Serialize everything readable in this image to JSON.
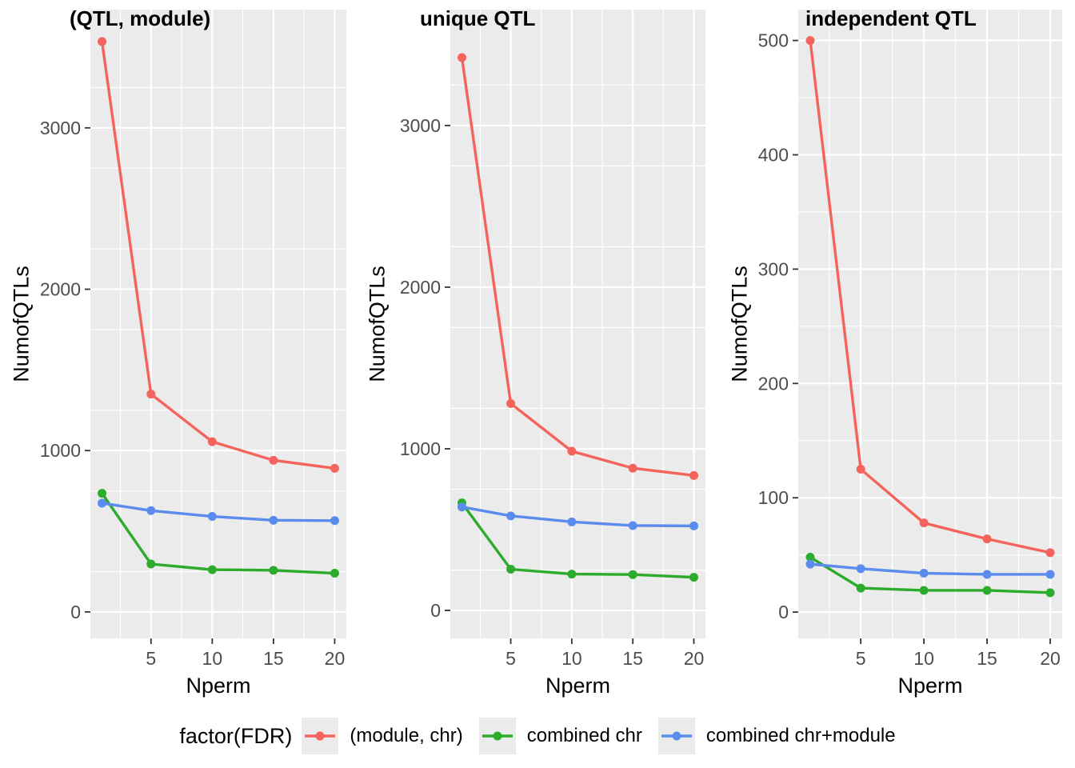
{
  "figure": {
    "background": "#FFFFFF",
    "panel_bg": "#EBEBEB",
    "grid_color": "#FFFFFF",
    "tick_mark_color": "#333333",
    "tick_label_color": "#4D4D4D",
    "title_color": "#000000"
  },
  "legend": {
    "title": "factor(FDR)",
    "position": "bottom",
    "entries": [
      {
        "label": "(module, chr)",
        "color": "#F4645C"
      },
      {
        "label": "combined chr",
        "color": "#2CAB2C"
      },
      {
        "label": "combined chr+module",
        "color": "#5C8BEE"
      }
    ]
  },
  "chart_data": [
    {
      "type": "line",
      "title": "(QTL, module)",
      "xlabel": "Nperm",
      "ylabel": "NumofQTLs",
      "x": [
        1,
        5,
        10,
        15,
        20
      ],
      "xticks": [
        5,
        10,
        15,
        20
      ],
      "xminor": [
        2.5,
        7.5,
        12.5,
        17.5
      ],
      "xlim": [
        0.05,
        20.95
      ],
      "yticks": [
        0,
        1000,
        2000,
        3000
      ],
      "yminor_step": 500,
      "ylim": [
        -164,
        3733
      ],
      "grid": true,
      "markers": true,
      "series": [
        {
          "name": "(module, chr)",
          "color": "#F4645C",
          "values": [
            3535,
            1350,
            1055,
            940,
            890
          ]
        },
        {
          "name": "combined chr",
          "color": "#2CAB2C",
          "values": [
            735,
            297,
            262,
            258,
            240
          ]
        },
        {
          "name": "combined chr+module",
          "color": "#5C8BEE",
          "values": [
            674,
            628,
            592,
            568,
            566
          ]
        }
      ]
    },
    {
      "type": "line",
      "title": "unique QTL",
      "xlabel": "Nperm",
      "ylabel": "NumofQTLs",
      "x": [
        1,
        5,
        10,
        15,
        20
      ],
      "xticks": [
        5,
        10,
        15,
        20
      ],
      "xminor": [
        2.5,
        7.5,
        12.5,
        17.5
      ],
      "xlim": [
        0.05,
        20.95
      ],
      "yticks": [
        0,
        1000,
        2000,
        3000
      ],
      "yminor_step": 500,
      "ylim": [
        -173,
        3717
      ],
      "grid": true,
      "markers": true,
      "series": [
        {
          "name": "(module, chr)",
          "color": "#F4645C",
          "values": [
            3420,
            1280,
            985,
            880,
            835
          ]
        },
        {
          "name": "combined chr",
          "color": "#2CAB2C",
          "values": [
            665,
            255,
            225,
            222,
            205
          ]
        },
        {
          "name": "combined chr+module",
          "color": "#5C8BEE",
          "values": [
            640,
            585,
            548,
            525,
            523
          ]
        }
      ]
    },
    {
      "type": "line",
      "title": "independent QTL",
      "xlabel": "Nperm",
      "ylabel": "NumofQTLs",
      "x": [
        1,
        5,
        10,
        15,
        20
      ],
      "xticks": [
        5,
        10,
        15,
        20
      ],
      "xminor": [
        2.5,
        7.5,
        12.5,
        17.5
      ],
      "xlim": [
        0.05,
        20.95
      ],
      "yticks": [
        0,
        100,
        200,
        300,
        400,
        500
      ],
      "yminor_step": 100,
      "ylim": [
        -23,
        527
      ],
      "grid": true,
      "markers": true,
      "series": [
        {
          "name": "(module, chr)",
          "color": "#F4645C",
          "values": [
            500,
            125,
            78,
            64,
            52
          ]
        },
        {
          "name": "combined chr",
          "color": "#2CAB2C",
          "values": [
            48,
            21,
            19,
            19,
            17
          ]
        },
        {
          "name": "combined chr+module",
          "color": "#5C8BEE",
          "values": [
            42,
            38,
            34,
            33,
            33
          ]
        }
      ]
    }
  ]
}
